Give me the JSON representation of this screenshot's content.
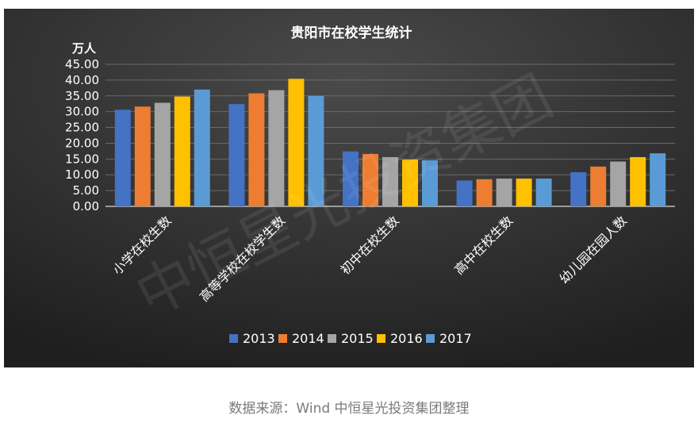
{
  "colors": {
    "panel_top": "#4a4a4a",
    "panel_bottom": "#1f1f1f",
    "text": "#ffffff",
    "gridline": "#6a6a6a",
    "axis": "#bdbdbd",
    "caption": "#7a7a7a",
    "watermark": "#ffffff"
  },
  "chart_data": {
    "type": "bar",
    "title": "贵阳市在校学生统计",
    "ylabel": "万人",
    "xlabel": "",
    "ylim": [
      0,
      45
    ],
    "yticks": [
      "0.00",
      "5.00",
      "10.00",
      "15.00",
      "20.00",
      "25.00",
      "30.00",
      "35.00",
      "40.00",
      "45.00"
    ],
    "grid": true,
    "legend_position": "bottom",
    "categories": [
      "小学在校生数",
      "高等学校在校学生数",
      "初中在校生数",
      "高中在校生数",
      "幼儿园在园人数"
    ],
    "series": [
      {
        "name": "2013",
        "color": "#4472c4",
        "values": [
          30.6,
          32.4,
          17.4,
          8.2,
          10.8
        ]
      },
      {
        "name": "2014",
        "color": "#ed7d31",
        "values": [
          31.6,
          35.8,
          16.6,
          8.6,
          12.6
        ]
      },
      {
        "name": "2015",
        "color": "#a5a5a5",
        "values": [
          32.8,
          36.8,
          15.6,
          8.8,
          14.2
        ]
      },
      {
        "name": "2016",
        "color": "#ffc000",
        "values": [
          34.8,
          40.4,
          14.8,
          8.8,
          15.6
        ]
      },
      {
        "name": "2017",
        "color": "#5b9bd5",
        "values": [
          37.0,
          35.0,
          14.6,
          8.8,
          16.8
        ]
      }
    ]
  },
  "watermark": {
    "text": "中恒星光投资集团"
  },
  "caption": {
    "text": "数据来源：Wind  中恒星光投资集团整理"
  }
}
